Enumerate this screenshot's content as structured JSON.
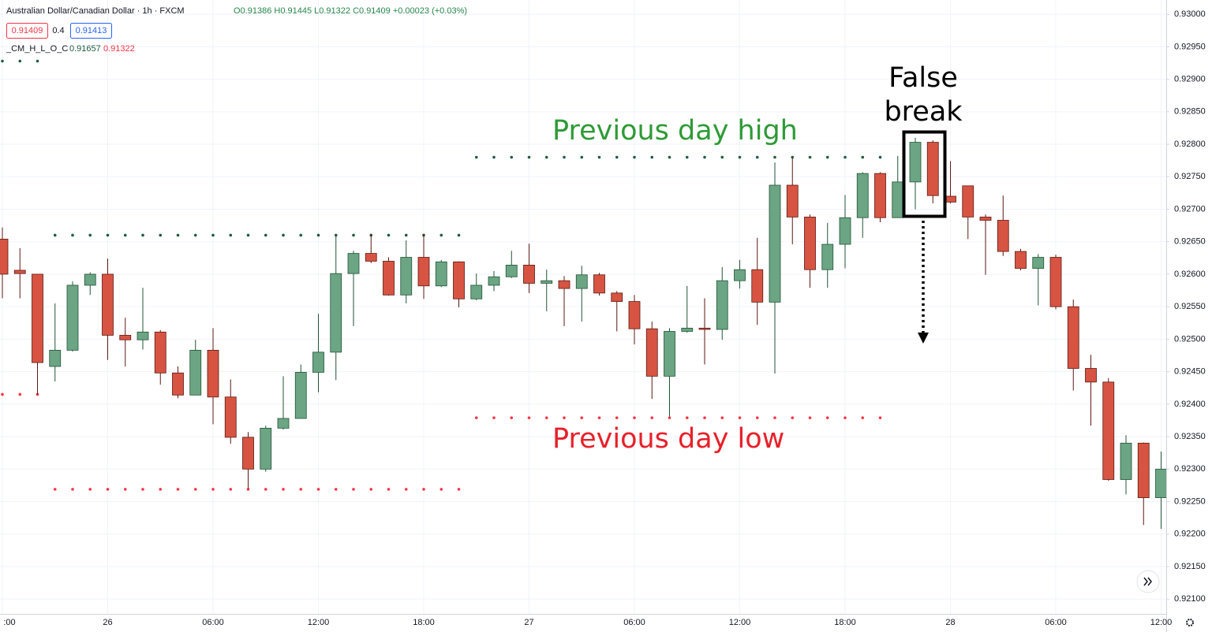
{
  "chart_data": {
    "type": "candlestick",
    "title": "Australian Dollar/Canadian Dollar · 1h · FXCM",
    "ohlc_text": "O0.91386 H0.91445 L0.91322 C0.91409 +0.00023 (+0.03%)",
    "bid": 0.91409,
    "spread": 0.4,
    "ask": 0.91413,
    "indicator": {
      "name": "_CM_H_L_O_C",
      "values": [
        0.91657,
        0.91322
      ]
    },
    "categories": [
      ":00",
      null,
      null,
      null,
      null,
      null,
      "26",
      null,
      null,
      null,
      null,
      null,
      "06:00",
      null,
      null,
      null,
      null,
      null,
      "12:00",
      null,
      null,
      null,
      null,
      null,
      "18:00",
      null,
      null,
      null,
      null,
      null,
      "27",
      null,
      null,
      null,
      null,
      null,
      "06:00",
      null,
      null,
      null,
      null,
      null,
      "12:00",
      null,
      null,
      null,
      null,
      null,
      "18:00",
      null,
      null,
      null,
      null,
      null,
      "28",
      null,
      null,
      null,
      null,
      null,
      "06:00",
      null,
      null,
      null,
      null,
      null,
      "12:00"
    ],
    "ohlc": {
      "open": [
        0.92654,
        0.92606,
        0.926,
        0.92458,
        0.92483,
        0.92583,
        0.926,
        0.92506,
        0.92499,
        0.92511,
        0.92448,
        0.92414,
        0.92483,
        0.92411,
        0.92349,
        0.923,
        0.92363,
        0.92378,
        0.92449,
        0.9248,
        0.92601,
        0.92632,
        0.9262,
        0.92568,
        0.92626,
        0.92582,
        0.92619,
        0.92562,
        0.92583,
        0.92596,
        0.92614,
        0.92586,
        0.9259,
        0.92578,
        0.92599,
        0.92571,
        0.92558,
        0.92516,
        0.92443,
        0.92512,
        0.92517,
        0.92515,
        0.9259,
        0.92607,
        0.92557,
        0.92737,
        0.92688,
        0.92607,
        0.92646,
        0.92687,
        0.92755,
        0.92687,
        0.92742,
        0.92803,
        0.9272,
        0.92736,
        0.92688,
        0.92683,
        0.92635,
        0.92609,
        0.92626,
        0.9255,
        0.92455,
        0.92434,
        0.92284,
        0.9234,
        0.92256
      ],
      "high": [
        0.92672,
        0.9264,
        0.926,
        0.92555,
        0.92589,
        0.92603,
        0.92624,
        0.92533,
        0.92579,
        0.92514,
        0.92458,
        0.92499,
        0.92517,
        0.92438,
        0.92357,
        0.92367,
        0.92443,
        0.92461,
        0.92539,
        0.92662,
        0.92636,
        0.92662,
        0.92626,
        0.92652,
        0.92662,
        0.92622,
        0.9262,
        0.92601,
        0.92605,
        0.92636,
        0.92647,
        0.92607,
        0.92597,
        0.92613,
        0.92602,
        0.92574,
        0.92568,
        0.92527,
        0.92517,
        0.92582,
        0.92563,
        0.92611,
        0.92622,
        0.92656,
        0.92772,
        0.92779,
        0.92692,
        0.92679,
        0.92722,
        0.92757,
        0.92757,
        0.92782,
        0.9281,
        0.92806,
        0.92774,
        0.92736,
        0.92692,
        0.92721,
        0.92639,
        0.92631,
        0.9263,
        0.92561,
        0.92476,
        0.9244,
        0.92352,
        0.92341,
        0.92327
      ],
      "low": [
        0.92563,
        0.92563,
        0.92415,
        0.92435,
        0.92481,
        0.92568,
        0.92468,
        0.92458,
        0.92484,
        0.9243,
        0.92409,
        0.92414,
        0.92369,
        0.92339,
        0.9227,
        0.92296,
        0.92361,
        0.92378,
        0.92418,
        0.92437,
        0.9252,
        0.92617,
        0.92567,
        0.92555,
        0.92562,
        0.9258,
        0.92549,
        0.9256,
        0.92574,
        0.92594,
        0.92571,
        0.92543,
        0.9252,
        0.92527,
        0.92567,
        0.92512,
        0.92492,
        0.92408,
        0.92381,
        0.9251,
        0.92461,
        0.92499,
        0.92578,
        0.92522,
        0.92447,
        0.92646,
        0.92579,
        0.92579,
        0.92609,
        0.92656,
        0.9268,
        0.92687,
        0.927,
        0.92709,
        0.92709,
        0.92654,
        0.92599,
        0.92628,
        0.92606,
        0.92552,
        0.92546,
        0.92421,
        0.92367,
        0.92282,
        0.92261,
        0.92214,
        0.92208
      ],
      "close": [
        0.926,
        0.92601,
        0.92464,
        0.92483,
        0.92583,
        0.926,
        0.92506,
        0.92499,
        0.92511,
        0.92448,
        0.92414,
        0.92483,
        0.92411,
        0.92349,
        0.923,
        0.92363,
        0.92378,
        0.92449,
        0.9248,
        0.92601,
        0.92632,
        0.9262,
        0.92568,
        0.92626,
        0.92582,
        0.92619,
        0.92562,
        0.92583,
        0.92596,
        0.92614,
        0.92586,
        0.9259,
        0.92578,
        0.92599,
        0.92571,
        0.92558,
        0.92516,
        0.92443,
        0.92512,
        0.92517,
        0.92515,
        0.9259,
        0.92607,
        0.92557,
        0.92737,
        0.92688,
        0.92607,
        0.92646,
        0.92687,
        0.92755,
        0.92687,
        0.92742,
        0.92803,
        0.92721,
        0.92711,
        0.92688,
        0.92683,
        0.92635,
        0.92609,
        0.92626,
        0.9255,
        0.92455,
        0.92434,
        0.92284,
        0.9234,
        0.92256,
        0.923
      ]
    },
    "up_color": "#6ba583",
    "up_border": "#225437",
    "down_color": "#d75442",
    "down_border": "#5b1a13",
    "series": [
      {
        "color": "#1f5c3e",
        "values": [
          0.92928,
          0.92928,
          0.92928,
          0.9266,
          0.9266,
          0.9266,
          0.9266,
          0.9266,
          0.9266,
          0.9266,
          0.9266,
          0.9266,
          0.9266,
          0.9266,
          0.9266,
          0.9266,
          0.9266,
          0.9266,
          0.9266,
          0.9266,
          0.9266,
          0.9266,
          0.9266,
          0.9266,
          0.9266,
          0.9266,
          0.9266,
          0.9278,
          0.9278,
          0.9278,
          0.9278,
          0.9278,
          0.9278,
          0.9278,
          0.9278,
          0.9278,
          0.9278,
          0.9278,
          0.9278,
          0.9278,
          0.9278,
          0.9278,
          0.9278,
          0.9278,
          0.9278,
          0.9278,
          0.9278,
          0.9278,
          0.9278,
          0.9278,
          0.9278,
          null,
          null,
          null,
          null,
          null,
          null,
          null,
          null,
          null,
          null,
          null,
          null,
          null,
          null,
          null,
          null
        ]
      },
      {
        "color": "#f23645",
        "values": [
          0.92415,
          0.92415,
          0.92415,
          0.92269,
          0.92269,
          0.92269,
          0.92269,
          0.92269,
          0.92269,
          0.92269,
          0.92269,
          0.92269,
          0.92269,
          0.92269,
          0.92269,
          0.92269,
          0.92269,
          0.92269,
          0.92269,
          0.92269,
          0.92269,
          0.92269,
          0.92269,
          0.92269,
          0.92269,
          0.92269,
          0.92269,
          0.92379,
          0.92379,
          0.92379,
          0.92379,
          0.92379,
          0.92379,
          0.92379,
          0.92379,
          0.92379,
          0.92379,
          0.92379,
          0.92379,
          0.92379,
          0.92379,
          0.92379,
          0.92379,
          0.92379,
          0.92379,
          0.92379,
          0.92379,
          0.92379,
          0.92379,
          0.92379,
          0.92379,
          null,
          null,
          null,
          null,
          null,
          null,
          null,
          null,
          null,
          null,
          null,
          null,
          null,
          null,
          null,
          null
        ]
      }
    ],
    "annotations": [
      {
        "text": "Previous day high",
        "color": "#2e9a36"
      },
      {
        "text": "Previous day low",
        "color": "#e8202a"
      },
      {
        "text": "False break",
        "color": "#000000"
      }
    ],
    "ylim": [
      0.92076,
      0.93022
    ],
    "yticks": [
      {
        "value": 0.93,
        "label": "0.93000"
      },
      {
        "value": 0.9295,
        "label": "0.92950"
      },
      {
        "value": 0.929,
        "label": "0.92900"
      },
      {
        "value": 0.9285,
        "label": "0.92850"
      },
      {
        "value": 0.928,
        "label": "0.92800"
      },
      {
        "value": 0.9275,
        "label": "0.92750"
      },
      {
        "value": 0.927,
        "label": "0.92700"
      },
      {
        "value": 0.9265,
        "label": "0.92650"
      },
      {
        "value": 0.926,
        "label": "0.92600"
      },
      {
        "value": 0.9255,
        "label": "0.92550"
      },
      {
        "value": 0.925,
        "label": "0.92500"
      },
      {
        "value": 0.9245,
        "label": "0.92450"
      },
      {
        "value": 0.924,
        "label": "0.92400"
      },
      {
        "value": 0.9235,
        "label": "0.92350"
      },
      {
        "value": 0.923,
        "label": "0.92300"
      },
      {
        "value": 0.9225,
        "label": "0.92250"
      },
      {
        "value": 0.922,
        "label": "0.92200"
      },
      {
        "value": 0.9215,
        "label": "0.92150"
      },
      {
        "value": 0.921,
        "label": "0.92100"
      }
    ],
    "grid": true
  }
}
